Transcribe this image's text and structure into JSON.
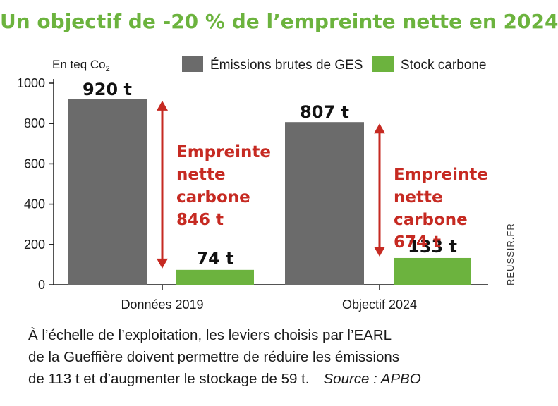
{
  "title": "Un objectif de -20 % de l’empreinte nette en 2024",
  "colors": {
    "title": "#6cb33e",
    "gross": "#6b6b6b",
    "stock": "#6cb33e",
    "arrow": "#c62a22"
  },
  "chart_data": {
    "type": "bar",
    "ylabel": "En teq Co2",
    "ylim": [
      0,
      1000
    ],
    "yticks": [
      0,
      200,
      400,
      600,
      800,
      1000
    ],
    "categories": [
      "Données 2019",
      "Objectif 2024"
    ],
    "series": [
      {
        "name": "Émissions brutes de GES",
        "values": [
          920,
          807
        ],
        "labels": [
          "920 t",
          "807 t"
        ]
      },
      {
        "name": "Stock carbone",
        "values": [
          74,
          133
        ],
        "labels": [
          "74 t",
          "133 t"
        ]
      }
    ],
    "annotations": [
      {
        "category": "Données 2019",
        "lines": [
          "Empreinte",
          "nette",
          "carbone",
          "846 t"
        ],
        "from": 74,
        "to": 920
      },
      {
        "category": "Objectif 2024",
        "lines": [
          "Empreinte",
          "nette",
          "carbone",
          "674 t"
        ],
        "from": 133,
        "to": 807
      }
    ],
    "legend": "top",
    "grid": false
  },
  "caption": {
    "line1": "À l’échelle de l’exploitation, les leviers choisis par l’EARL",
    "line2": "de la Gueffière doivent permettre de réduire les émissions",
    "line3": "de 113 t et d’augmenter le stockage de 59 t.",
    "source": "Source : APBO"
  },
  "watermark": "REUSSIR.FR"
}
